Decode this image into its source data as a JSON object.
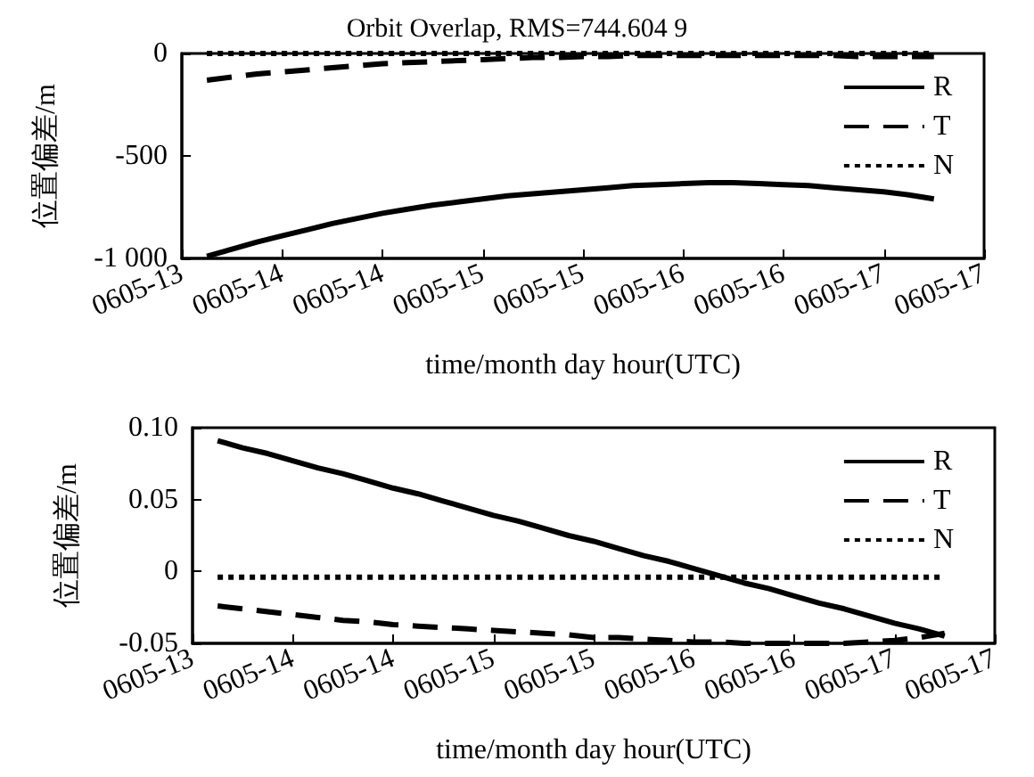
{
  "chart_data": [
    {
      "type": "line",
      "title": "Orbit Overlap, RMS=744.604 9",
      "xlabel": "time/month day hour(UTC)",
      "ylabel": "位置偏差/m",
      "categories": [
        "0605-13",
        null,
        null,
        null,
        "0605-14",
        null,
        null,
        null,
        "0605-14",
        null,
        null,
        null,
        "0605-15",
        null,
        null,
        null,
        "0605-15",
        null,
        null,
        null,
        "0605-16",
        null,
        null,
        null,
        "0605-16",
        null,
        null,
        null,
        "0605-17",
        null,
        null,
        null,
        "0605-17"
      ],
      "series": [
        {
          "name": "R",
          "color": "#000000",
          "line_style": "solid",
          "values": [
            null,
            -990,
            -955,
            -920,
            -890,
            -860,
            -830,
            -805,
            -780,
            -760,
            -740,
            -725,
            -710,
            -695,
            -685,
            -675,
            -665,
            -655,
            -645,
            -640,
            -635,
            -630,
            -630,
            -635,
            -640,
            -645,
            -655,
            -665,
            -675,
            -690,
            -710,
            null,
            null
          ]
        },
        {
          "name": "T",
          "color": "#000000",
          "line_style": "dashed",
          "values": [
            null,
            -130,
            -115,
            -100,
            -90,
            -80,
            -70,
            -60,
            -50,
            -45,
            -40,
            -35,
            -30,
            -25,
            -20,
            -20,
            -15,
            -15,
            -10,
            -10,
            -10,
            -10,
            -10,
            -10,
            -10,
            -10,
            -10,
            -15,
            -15,
            -15,
            -15,
            null,
            null
          ]
        },
        {
          "name": "N",
          "color": "#000000",
          "line_style": "dotted",
          "values": [
            null,
            0,
            0,
            0,
            0,
            0,
            0,
            0,
            0,
            0,
            0,
            0,
            0,
            0,
            0,
            0,
            0,
            0,
            0,
            0,
            0,
            0,
            0,
            0,
            0,
            0,
            0,
            0,
            0,
            0,
            0,
            null,
            null
          ]
        }
      ],
      "ylim": [
        -1000,
        0
      ],
      "yticks": [
        {
          "value": -1000,
          "label": "-1 000"
        },
        -500,
        0
      ],
      "grid": false,
      "legend": "top right",
      "marker": "none"
    },
    {
      "type": "line",
      "xlabel": "time/month day hour(UTC)",
      "ylabel": "位置偏差/m",
      "categories": [
        "0605-13",
        null,
        null,
        null,
        "0605-14",
        null,
        null,
        null,
        "0605-14",
        null,
        null,
        null,
        "0605-15",
        null,
        null,
        null,
        "0605-15",
        null,
        null,
        null,
        "0605-16",
        null,
        null,
        null,
        "0605-16",
        null,
        null,
        null,
        "0605-17",
        null,
        null,
        null,
        "0605-17"
      ],
      "series": [
        {
          "name": "R",
          "color": "#000000",
          "line_style": "solid",
          "values": [
            null,
            0.091,
            0.086,
            0.082,
            0.077,
            0.072,
            0.068,
            0.063,
            0.058,
            0.054,
            0.049,
            0.044,
            0.039,
            0.035,
            0.03,
            0.025,
            0.021,
            0.016,
            0.011,
            0.007,
            0.002,
            -0.003,
            -0.008,
            -0.012,
            -0.017,
            -0.022,
            -0.026,
            -0.031,
            -0.036,
            -0.04,
            -0.045,
            null,
            null
          ]
        },
        {
          "name": "T",
          "color": "#000000",
          "line_style": "dashed",
          "values": [
            null,
            -0.024,
            -0.026,
            -0.028,
            -0.03,
            -0.032,
            -0.034,
            -0.035,
            -0.037,
            -0.038,
            -0.039,
            -0.04,
            -0.041,
            -0.042,
            -0.043,
            -0.044,
            -0.046,
            -0.046,
            -0.047,
            -0.048,
            -0.049,
            -0.049,
            -0.05,
            -0.05,
            -0.05,
            -0.05,
            -0.05,
            -0.049,
            -0.048,
            -0.046,
            -0.043,
            null,
            null
          ]
        },
        {
          "name": "N",
          "color": "#000000",
          "line_style": "dotted",
          "values": [
            null,
            -0.004,
            -0.004,
            -0.004,
            -0.004,
            -0.004,
            -0.004,
            -0.004,
            -0.004,
            -0.004,
            -0.004,
            -0.004,
            -0.004,
            -0.004,
            -0.004,
            -0.004,
            -0.004,
            -0.004,
            -0.004,
            -0.004,
            -0.004,
            -0.004,
            -0.004,
            -0.004,
            -0.004,
            -0.004,
            -0.004,
            -0.004,
            -0.004,
            -0.004,
            -0.004,
            null,
            null
          ]
        }
      ],
      "ylim": [
        -0.05,
        0.1
      ],
      "yticks": [
        {
          "value": -0.05,
          "label": "-0.05"
        },
        {
          "value": 0,
          "label": "0"
        },
        {
          "value": 0.05,
          "label": "0.05"
        },
        {
          "value": 0.1,
          "label": "0.10"
        }
      ],
      "grid": false,
      "legend": "top right",
      "marker": "none"
    }
  ]
}
